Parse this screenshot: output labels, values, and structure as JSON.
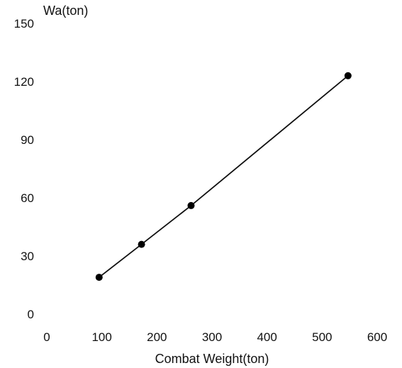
{
  "chart_data": {
    "type": "line",
    "xlabel": "Combat Weight(ton)",
    "ylabel": "Wa(ton)",
    "x_ticks": [
      "0",
      "100",
      "200",
      "300",
      "400",
      "500",
      "600"
    ],
    "y_ticks": [
      "0",
      "30",
      "60",
      "90",
      "120",
      "150"
    ],
    "xlim": [
      0,
      600
    ],
    "ylim": [
      0,
      150
    ],
    "grid": false,
    "series": [
      {
        "x": [
          95,
          172,
          262,
          547
        ],
        "y": [
          19,
          36,
          56,
          123
        ]
      }
    ],
    "colors": {
      "line": "#111111",
      "marker": "#000000",
      "text": "#111111"
    }
  }
}
